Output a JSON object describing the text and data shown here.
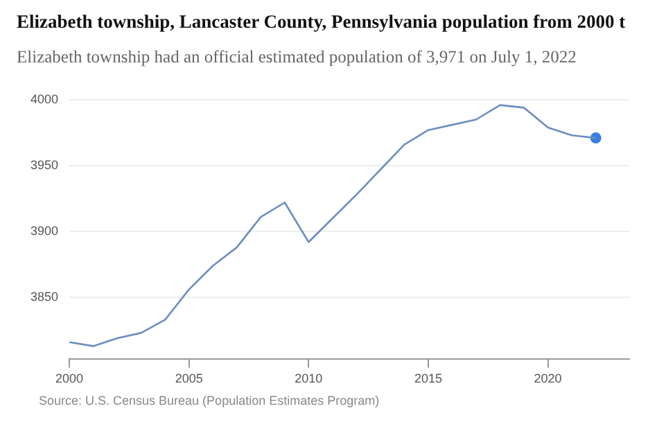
{
  "chart_data": {
    "type": "line",
    "title": "Elizabeth township, Lancaster County, Pennsylvania population from 2000 t",
    "subtitle": "Elizabeth township had an official estimated population of 3,971 on July 1, 2022",
    "annotations": [
      "Source: U.S. Census Bureau (Population Estimates Program)"
    ],
    "x": [
      2000,
      2001,
      2002,
      2003,
      2004,
      2005,
      2006,
      2007,
      2008,
      2009,
      2010,
      2011,
      2012,
      2013,
      2014,
      2015,
      2016,
      2017,
      2018,
      2019,
      2020,
      2021,
      2022
    ],
    "series": [
      {
        "color": "#6b8fc0",
        "values": [
          3816,
          3813,
          3819,
          3823,
          3833,
          3856,
          3874,
          3888,
          3911,
          3922,
          3892,
          3910,
          3928,
          3947,
          3966,
          3977,
          3981,
          3985,
          3996,
          3994,
          3979,
          3973,
          3971
        ]
      },
      {
        "type": "scatter",
        "color": "#3b7ddd",
        "x": [
          2022
        ],
        "values": [
          3971
        ],
        "marker": "circle"
      }
    ],
    "xlim": [
      2000,
      2023.4
    ],
    "xticks": [
      2000,
      2005,
      2010,
      2015,
      2020
    ],
    "ylim": [
      3803,
      4000
    ],
    "yticks": [
      3850,
      3900,
      3950,
      4000
    ],
    "grid": "y",
    "legend": false,
    "marker": "none",
    "line_style": "solid"
  }
}
